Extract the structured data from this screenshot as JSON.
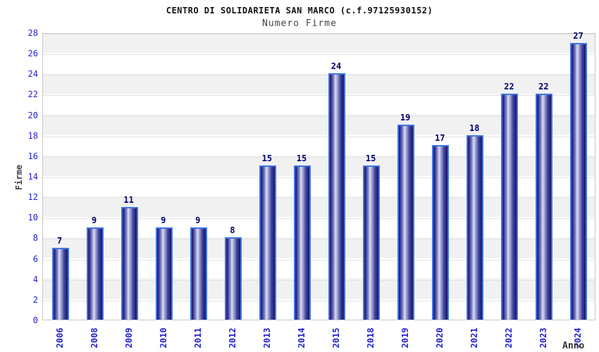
{
  "header": {
    "title": "CENTRO DI SOLIDARIETA SAN MARCO (c.f.97125930152)",
    "subtitle": "Numero Firme"
  },
  "chart_data": {
    "type": "bar",
    "title": "CENTRO DI SOLIDARIETA SAN MARCO (c.f.97125930152)",
    "subtitle": "Numero Firme",
    "xlabel": "Anno",
    "ylabel": "Firme",
    "categories": [
      "2006",
      "2008",
      "2009",
      "2010",
      "2011",
      "2012",
      "2013",
      "2014",
      "2015",
      "2018",
      "2019",
      "2020",
      "2021",
      "2022",
      "2023",
      "2024"
    ],
    "values": [
      7,
      9,
      11,
      9,
      9,
      8,
      15,
      15,
      24,
      15,
      19,
      17,
      18,
      22,
      22,
      27
    ],
    "ylim": [
      0,
      28
    ],
    "ytick_step": 2,
    "grid": true,
    "legend_position": "none",
    "colors": {
      "tick_label": "#2323cd",
      "value_label": "#00006b",
      "bar_dark": "#16166e",
      "bar_light": "#dcdef2",
      "bar_border": "#4276e3",
      "band_gray": "#f1f1f1",
      "gridline": "#e2e2e2",
      "axis_label": "#404040"
    }
  }
}
